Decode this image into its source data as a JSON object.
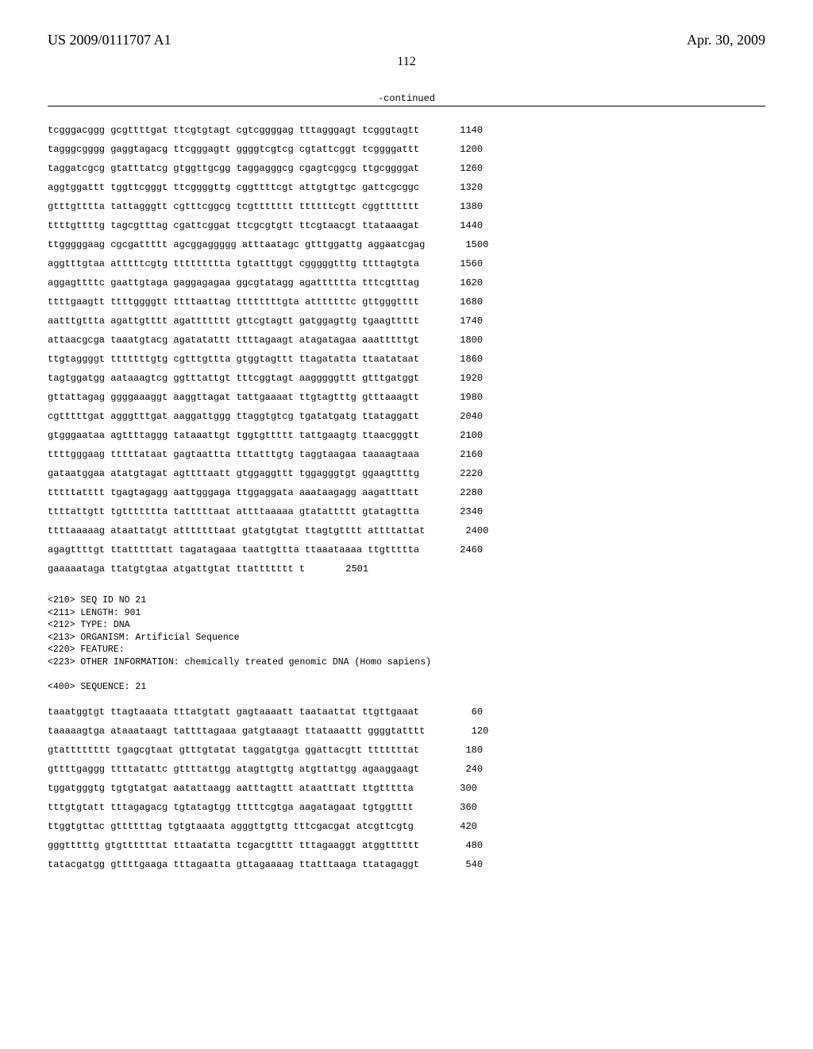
{
  "header": {
    "publication_number": "US 2009/0111707 A1",
    "publication_date": "Apr. 30, 2009",
    "page_number": "112",
    "continued_label": "-continued"
  },
  "sequence1": {
    "rows": [
      {
        "seq": "tcgggacggg gcgttttgat ttcgtgtagt cgtcggggag tttagggagt tcgggtagtt",
        "pos": "1140"
      },
      {
        "seq": "tagggcgggg gaggtagacg ttcgggagtt ggggtcgtcg cgtattcggt tcggggattt",
        "pos": "1200"
      },
      {
        "seq": "taggatcgcg gtatttatcg gtggttgcgg taggagggcg cgagtcggcg ttgcggggat",
        "pos": "1260"
      },
      {
        "seq": "aggtggattt tggttcgggt ttcggggttg cggttttcgt attgtgttgc gattcgcggc",
        "pos": "1320"
      },
      {
        "seq": "gtttgtttta tattagggtt cgtttcggcg tcgttttttt ttttttcgtt cggttttttt",
        "pos": "1380"
      },
      {
        "seq": "ttttgttttg tagcgtttag cgattcggat ttcgcgtgtt ttcgtaacgt ttataaagat",
        "pos": "1440"
      },
      {
        "seq": "ttgggggaag cgcgattttt agcggaggggg atttaatagc gtttggattg aggaatcgag",
        "pos": "1500"
      },
      {
        "seq": "aggtttgtaa atttttcgtg ttttttttta tgtatttggt cgggggtttg ttttagtgta",
        "pos": "1560"
      },
      {
        "seq": "aggagttttc gaattgtaga gaggagagaa ggcgtatagg agatttttta tttcgtttag",
        "pos": "1620"
      },
      {
        "seq": "ttttgaagtt ttttggggtt ttttaattag ttttttttgta atttttttc gttgggtttt",
        "pos": "1680"
      },
      {
        "seq": "aatttgttta agattgtttt agattttttt gttcgtagtt gatggagttg tgaagttttt",
        "pos": "1740"
      },
      {
        "seq": "attaacgcga taaatgtacg agatatattt ttttagaagt atagatagaa aaatttttgt",
        "pos": "1800"
      },
      {
        "seq": "ttgtaggggt tttttttgtg cgtttgttta gtggtagttt ttagatatta ttaatataat",
        "pos": "1860"
      },
      {
        "seq": "tagtggatgg aataaagtcg ggtttattgt tttcggtagt aagggggttt gtttgatggt",
        "pos": "1920"
      },
      {
        "seq": "gttattagag ggggaaaggt aaggttagat tattgaaaat ttgtagtttg gtttaaagtt",
        "pos": "1980"
      },
      {
        "seq": "cgtttttgat agggtttgat aaggattggg ttaggtgtcg tgatatgatg ttataggatt",
        "pos": "2040"
      },
      {
        "seq": "gtgggaataa agttttaggg tataaattgt tggtgttttt tattgaagtg ttaacgggtt",
        "pos": "2100"
      },
      {
        "seq": "ttttgggaag tttttataat gagtaattta tttatttgtg taggtaagaa taaaagtaaa",
        "pos": "2160"
      },
      {
        "seq": "gataatggaa atatgtagat agttttaatt gtggaggttt tggagggtgt ggaagttttg",
        "pos": "2220"
      },
      {
        "seq": "tttttatttt tgagtagagg aattgggaga ttggaggata aaataagagg aagatttatt",
        "pos": "2280"
      },
      {
        "seq": "ttttattgtt tgttttttta tatttttaat attttaaaaa gtatattttt gtatagttta",
        "pos": "2340"
      },
      {
        "seq": "ttttaaaaag ataattatgt atttttttaat gtatgtgtat ttagtgtttt attttattat",
        "pos": "2400"
      },
      {
        "seq": "agagttttgt ttatttttatt tagatagaaa taattgttta ttaaataaaa ttgttttta",
        "pos": "2460"
      },
      {
        "seq": "gaaaaataga ttatgtgtaa atgattgtat ttattttttt t",
        "pos": "2501"
      }
    ]
  },
  "meta": {
    "lines": [
      "<210> SEQ ID NO 21",
      "<211> LENGTH: 901",
      "<212> TYPE: DNA",
      "<213> ORGANISM: Artificial Sequence",
      "<220> FEATURE:",
      "<223> OTHER INFORMATION: chemically treated genomic DNA (Homo sapiens)",
      "",
      "<400> SEQUENCE: 21"
    ]
  },
  "sequence2": {
    "rows": [
      {
        "seq": "taaatggtgt ttagtaaata tttatgtatt gagtaaaatt taataattat ttgttgaaat",
        "pos": "60"
      },
      {
        "seq": "taaaaagtga ataaataagt tattttagaaa gatgtaaagt ttataaattt ggggtatttt",
        "pos": "120"
      },
      {
        "seq": "gtatttttttt tgagcgtaat gtttgtatat taggatgtga ggattacgtt tttttttat",
        "pos": "180"
      },
      {
        "seq": "gttttgaggg ttttatattc gttttattgg atagttgttg atgttattgg agaaggaagt",
        "pos": "240"
      },
      {
        "seq": "tggatgggtg tgtgtatgat aatattaagg aatttagttt ataatttatt ttgttttta",
        "pos": "300"
      },
      {
        "seq": "tttgtgtatt tttagagacg tgtatagtgg tttttcgtga aagatagaat tgtggtttt",
        "pos": "360"
      },
      {
        "seq": "ttggtgttac gttttttag tgtgtaaata agggttgttg tttcgacgat atcgttcgtg",
        "pos": "420"
      },
      {
        "seq": "gggtttttg gtgttttttat tttaatatta tcgacgtttt tttagaaggt atggtttttt",
        "pos": "480"
      },
      {
        "seq": "tatacgatgg gttttgaaga tttagaatta gttagaaaag ttatttaaga ttatagaggt",
        "pos": "540"
      }
    ]
  }
}
